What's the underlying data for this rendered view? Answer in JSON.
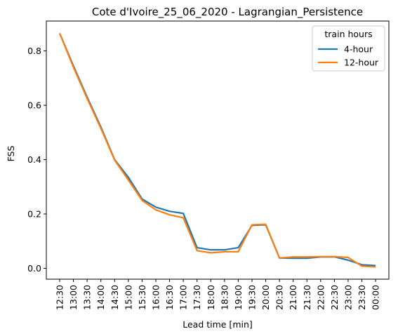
{
  "chart_data": {
    "type": "line",
    "title": "Cote d'Ivoire_25_06_2020 - Lagrangian_Persistence",
    "xlabel": "Lead time [min]",
    "ylabel": "FSS",
    "x": [
      "12:30",
      "13:00",
      "13:30",
      "14:00",
      "14:30",
      "15:00",
      "15:30",
      "16:00",
      "16:30",
      "17:00",
      "17:30",
      "18:00",
      "18:30",
      "19:00",
      "19:30",
      "20:00",
      "20:30",
      "21:00",
      "21:30",
      "22:00",
      "22:30",
      "23:00",
      "23:30",
      "00:00"
    ],
    "yticks": [
      "0.0",
      "0.2",
      "0.4",
      "0.6",
      "0.8"
    ],
    "ylim": [
      -0.04,
      0.91
    ],
    "grid": false,
    "legend": {
      "title": "train hours",
      "placement": "top-right"
    },
    "series": [
      {
        "name": "4-hour",
        "color": "#1f77b4",
        "values": [
          0.865,
          0.745,
          0.63,
          0.52,
          0.4,
          0.335,
          0.255,
          0.225,
          0.21,
          0.202,
          0.076,
          0.068,
          0.068,
          0.076,
          0.158,
          0.16,
          0.038,
          0.037,
          0.037,
          0.042,
          0.042,
          0.03,
          0.013,
          0.01
        ]
      },
      {
        "name": "12-hour",
        "color": "#ff7f0e",
        "values": [
          0.865,
          0.74,
          0.625,
          0.515,
          0.398,
          0.325,
          0.25,
          0.215,
          0.197,
          0.186,
          0.065,
          0.057,
          0.061,
          0.061,
          0.16,
          0.162,
          0.038,
          0.042,
          0.042,
          0.043,
          0.043,
          0.04,
          0.008,
          0.005
        ]
      }
    ]
  }
}
